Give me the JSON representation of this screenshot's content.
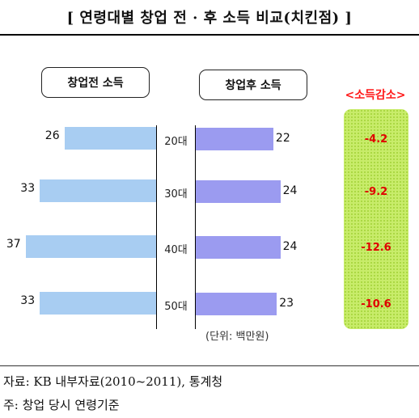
{
  "title": "[ 연령대별 창업 전 · 후 소득 비교(치킨점) ]",
  "chart_data": {
    "type": "bar",
    "categories": [
      "20대",
      "30대",
      "40대",
      "50대"
    ],
    "series": [
      {
        "name": "창업전 소득",
        "values": [
          26,
          33,
          37,
          33
        ]
      },
      {
        "name": "창업후 소득",
        "values": [
          22,
          24,
          24,
          23
        ]
      }
    ],
    "decrease_title": "<소득감소>",
    "decrease_values": [
      "-4.2",
      "-9.2",
      "-12.6",
      "-10.6"
    ],
    "unit": "(단위: 백만원)",
    "colors": {
      "before": "#a8cdf2",
      "after": "#9b9bf0",
      "decrease_panel": "#c8ec6a",
      "decrease_text": "#e00000"
    }
  },
  "notes": {
    "source": "자료: KB 내부자료(2010~2011), 통계청",
    "footnote": "주: 창업 당시 연령기준"
  }
}
